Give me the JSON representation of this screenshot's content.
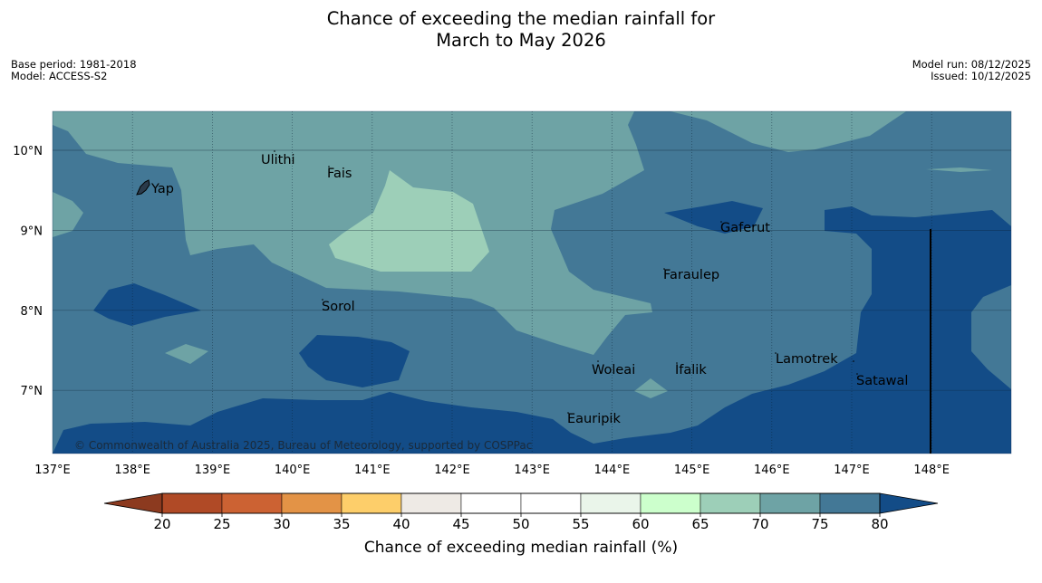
{
  "title": {
    "line1": "Chance of exceeding the median rainfall for",
    "line2": "March to May 2026"
  },
  "meta": {
    "base_period": "Base period: 1981-2018",
    "model": "Model: ACCESS-S2",
    "model_run": "Model run: 08/12/2025",
    "issued": "Issued: 10/12/2025"
  },
  "map": {
    "lon_range": [
      137,
      149
    ],
    "lat_range": [
      6.2,
      10.5
    ],
    "x_ticks": [
      "137°E",
      "138°E",
      "139°E",
      "140°E",
      "141°E",
      "142°E",
      "143°E",
      "144°E",
      "145°E",
      "146°E",
      "147°E",
      "148°E"
    ],
    "y_ticks": [
      "10°N",
      "9°N",
      "8°N",
      "7°N"
    ],
    "places": {
      "ulithi": "Ulithi",
      "fais": "Fais",
      "yap": "Yap",
      "gaferut": "Gaferut",
      "faraulep": "Faraulep",
      "sorol": "Sorol",
      "lamotrek": "Lamotrek",
      "woleai": "Woleai",
      "ifalik": "Ifalik",
      "satawal": "Satawal",
      "eauripik": "Eauripik"
    },
    "copyright": "© Commonwealth of Australia 2025, Bureau of Meteorology, supported by COSPPac"
  },
  "colorbar": {
    "ticks": [
      "20",
      "25",
      "30",
      "35",
      "40",
      "45",
      "50",
      "55",
      "60",
      "65",
      "70",
      "75",
      "80"
    ],
    "label": "Chance of exceeding median rainfall (%)",
    "colors": {
      "below20": "#8c3a1f",
      "c20_25": "#b04a26",
      "c25_30": "#cc6233",
      "c30_35": "#e39346",
      "c35_40": "#fdce6a",
      "c40_45": "#eeeae5",
      "c45_50": "#ffffff",
      "c50_55": "#ffffff",
      "c55_60": "#eaf5ea",
      "c60_65": "#ccffcc",
      "c65_70": "#9dcfb8",
      "c70_75": "#6ea3a5",
      "c75_80": "#437896",
      "above80": "#134c87"
    }
  }
}
